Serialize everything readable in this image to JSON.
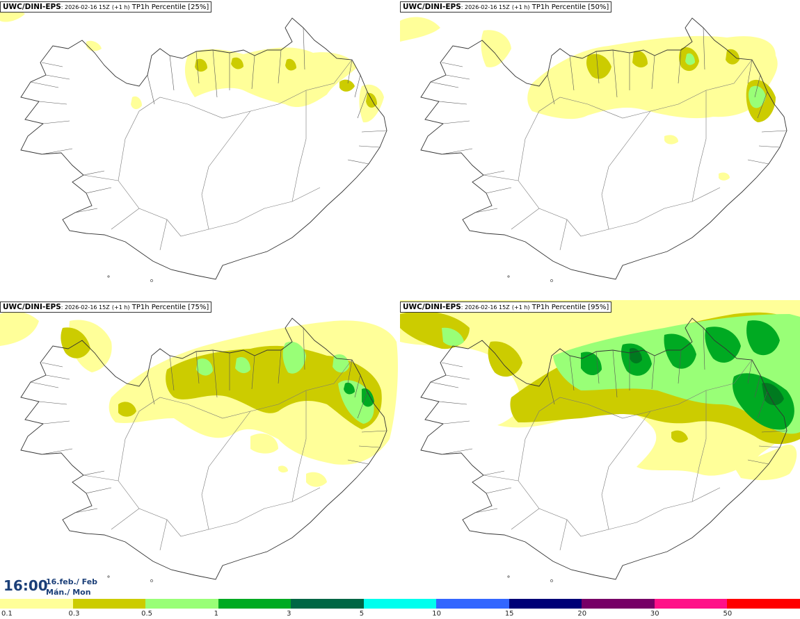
{
  "panels": [
    {
      "model": "UWC/DINI-EPS",
      "meta": ": 2026-02-16 15Z",
      "lead": "(+1 h)",
      "product": "TP1h Percentile [25%]",
      "percentile": 25
    },
    {
      "model": "UWC/DINI-EPS",
      "meta": ": 2026-02-16 15Z",
      "lead": "(+1 h)",
      "product": "TP1h Percentile [50%]",
      "percentile": 50
    },
    {
      "model": "UWC/DINI-EPS",
      "meta": ": 2026-02-16 15Z",
      "lead": "(+1 h)",
      "product": "TP1h Percentile [75%]",
      "percentile": 75
    },
    {
      "model": "UWC/DINI-EPS",
      "meta": ": 2026-02-16 15Z",
      "lead": "(+1 h)",
      "product": "TP1h Percentile [95%]",
      "percentile": 95
    }
  ],
  "valid_time": {
    "time": "16:00",
    "date": "16.feb./ Feb",
    "weekday": "Mán./ Mon"
  },
  "legend": {
    "ticks": [
      "0.1",
      "0.3",
      "0.5",
      "1",
      "3",
      "5",
      "10",
      "15",
      "20",
      "30",
      "50"
    ],
    "colors": [
      "#ffff99",
      "#cccc00",
      "#99ff77",
      "#00aa22",
      "#006644",
      "#00ffee",
      "#3366ff",
      "#000077",
      "#770066",
      "#ff1188",
      "#ff0000"
    ]
  },
  "fill_colors": {
    "light": "#ffff99",
    "olive": "#cccc00",
    "lightgreen": "#99ff77",
    "green": "#00aa22",
    "darkgreen": "#007a1f"
  }
}
